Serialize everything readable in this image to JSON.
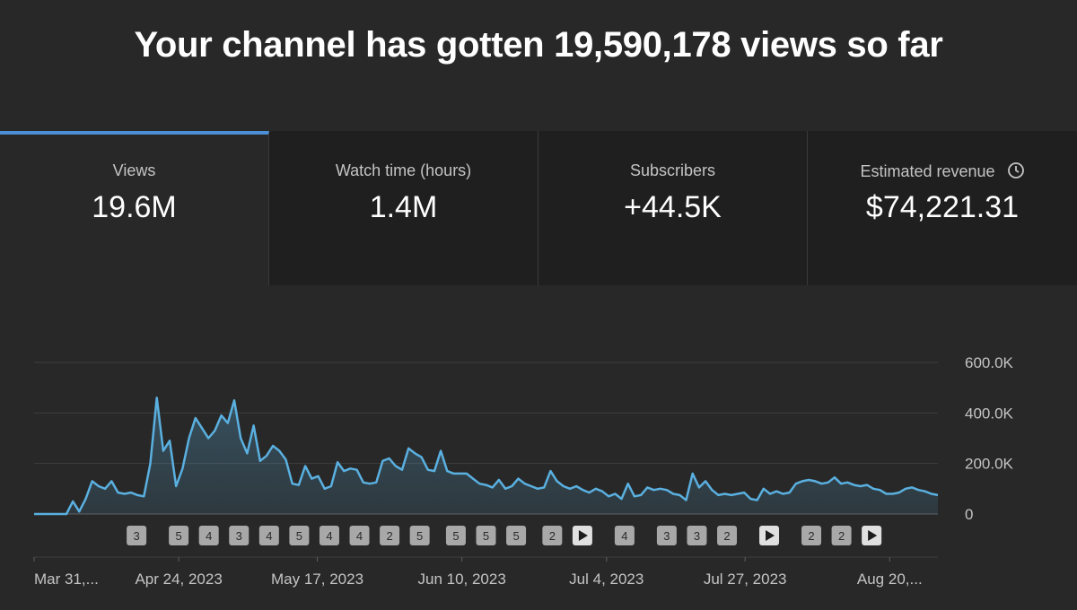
{
  "headline": "Your channel has gotten 19,590,178 views so far",
  "cards": [
    {
      "label": "Views",
      "value": "19.6M",
      "active": true
    },
    {
      "label": "Watch time (hours)",
      "value": "1.4M"
    },
    {
      "label": "Subscribers",
      "value": "+44.5K"
    },
    {
      "label": "Estimated revenue",
      "value": "$74,221.31",
      "icon": "clock-icon"
    }
  ],
  "colors": {
    "line": "#5ab0e0",
    "accent": "#4d8fd6",
    "background": "#282828"
  },
  "chart_data": {
    "type": "area",
    "ylim": [
      0,
      600000
    ],
    "y_ticks": [
      {
        "value": 0,
        "label": "0"
      },
      {
        "value": 200000,
        "label": "200.0K"
      },
      {
        "value": 400000,
        "label": "400.0K"
      },
      {
        "value": 600000,
        "label": "600.0K"
      }
    ],
    "x_start": "2023-03-31",
    "x_end": "2023-08-28",
    "x_ticks": [
      {
        "date": "2023-03-31",
        "label": "Mar 31,..."
      },
      {
        "date": "2023-04-24",
        "label": "Apr 24, 2023"
      },
      {
        "date": "2023-05-17",
        "label": "May 17, 2023"
      },
      {
        "date": "2023-06-10",
        "label": "Jun 10, 2023"
      },
      {
        "date": "2023-07-04",
        "label": "Jul 4, 2023"
      },
      {
        "date": "2023-07-27",
        "label": "Jul 27, 2023"
      },
      {
        "date": "2023-08-20",
        "label": "Aug 20,..."
      }
    ],
    "series": [
      {
        "values": [
          0,
          0,
          0,
          0,
          0,
          0,
          50000,
          10000,
          60000,
          130000,
          110000,
          100000,
          130000,
          85000,
          80000,
          85000,
          75000,
          70000,
          200000,
          460000,
          250000,
          290000,
          110000,
          180000,
          300000,
          380000,
          340000,
          300000,
          330000,
          390000,
          360000,
          450000,
          300000,
          240000,
          350000,
          210000,
          230000,
          270000,
          250000,
          215000,
          120000,
          115000,
          190000,
          140000,
          150000,
          100000,
          110000,
          205000,
          170000,
          180000,
          175000,
          125000,
          120000,
          125000,
          210000,
          220000,
          190000,
          175000,
          260000,
          240000,
          225000,
          175000,
          170000,
          250000,
          170000,
          160000,
          160000,
          160000,
          140000,
          120000,
          115000,
          105000,
          135000,
          100000,
          110000,
          140000,
          120000,
          110000,
          100000,
          105000,
          170000,
          130000,
          110000,
          100000,
          110000,
          95000,
          85000,
          100000,
          90000,
          70000,
          80000,
          60000,
          120000,
          70000,
          75000,
          105000,
          95000,
          100000,
          95000,
          80000,
          75000,
          55000,
          160000,
          105000,
          130000,
          95000,
          75000,
          80000,
          75000,
          80000,
          85000,
          60000,
          55000,
          100000,
          80000,
          90000,
          80000,
          85000,
          120000,
          130000,
          135000,
          130000,
          120000,
          125000,
          145000,
          120000,
          125000,
          115000,
          110000,
          115000,
          100000,
          95000,
          80000,
          80000,
          85000,
          100000,
          105000,
          95000,
          90000,
          80000,
          75000
        ]
      }
    ],
    "markers": [
      {
        "date": "2023-04-17",
        "label": "3"
      },
      {
        "date": "2023-04-24",
        "label": "5"
      },
      {
        "date": "2023-04-29",
        "label": "4"
      },
      {
        "date": "2023-05-04",
        "label": "3"
      },
      {
        "date": "2023-05-09",
        "label": "4"
      },
      {
        "date": "2023-05-14",
        "label": "5"
      },
      {
        "date": "2023-05-19",
        "label": "4"
      },
      {
        "date": "2023-05-24",
        "label": "4"
      },
      {
        "date": "2023-05-29",
        "label": "2"
      },
      {
        "date": "2023-06-03",
        "label": "5"
      },
      {
        "date": "2023-06-09",
        "label": "5"
      },
      {
        "date": "2023-06-14",
        "label": "5"
      },
      {
        "date": "2023-06-19",
        "label": "5"
      },
      {
        "date": "2023-06-25",
        "label": "2"
      },
      {
        "date": "2023-06-30",
        "label": "",
        "play": true
      },
      {
        "date": "2023-07-07",
        "label": "4"
      },
      {
        "date": "2023-07-14",
        "label": "3"
      },
      {
        "date": "2023-07-19",
        "label": "3"
      },
      {
        "date": "2023-07-24",
        "label": "2"
      },
      {
        "date": "2023-07-31",
        "label": "",
        "play": true
      },
      {
        "date": "2023-08-07",
        "label": "2"
      },
      {
        "date": "2023-08-12",
        "label": "2"
      },
      {
        "date": "2023-08-17",
        "label": "",
        "play": true
      }
    ]
  }
}
